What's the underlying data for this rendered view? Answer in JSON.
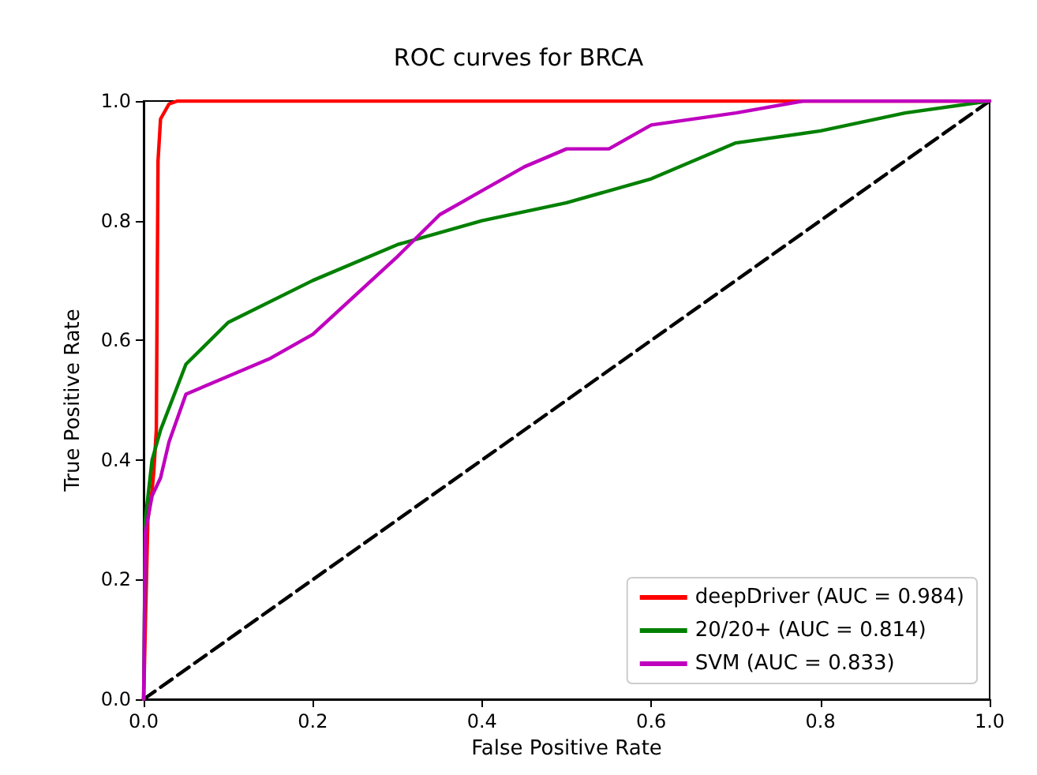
{
  "chart_data": {
    "type": "line",
    "title": "ROC curves for BRCA",
    "xlabel": "False Positive Rate",
    "ylabel": "True Positive Rate",
    "xlim": [
      0,
      1
    ],
    "ylim": [
      0,
      1
    ],
    "xticks": [
      {
        "value": 0,
        "label": "0.0"
      },
      0.2,
      0.4,
      0.6,
      0.8,
      {
        "value": 1,
        "label": "1.0"
      }
    ],
    "yticks": [
      {
        "value": 0,
        "label": "0.0"
      },
      0.2,
      0.4,
      0.6,
      0.8,
      {
        "value": 1,
        "label": "1.0"
      }
    ],
    "grid": false,
    "legend": "bottom right",
    "marker": "none",
    "series": [
      {
        "name": "deepDriver (AUC = 0.984)",
        "color": "#ff0000",
        "x": [
          0,
          0.005,
          0.01,
          0.012,
          0.015,
          0.017,
          0.02,
          0.03,
          0.04,
          1
        ],
        "values": [
          0,
          0.3,
          0.35,
          0.38,
          0.45,
          0.9,
          0.97,
          0.995,
          1,
          1
        ]
      },
      {
        "name": "20/20+ (AUC = 0.814)",
        "color": "#008000",
        "x": [
          0,
          0.002,
          0.01,
          0.02,
          0.05,
          0.1,
          0.2,
          0.3,
          0.4,
          0.5,
          0.6,
          0.7,
          0.8,
          0.9,
          1
        ],
        "values": [
          0,
          0.3,
          0.4,
          0.45,
          0.56,
          0.63,
          0.7,
          0.76,
          0.8,
          0.83,
          0.87,
          0.93,
          0.95,
          0.98,
          1
        ]
      },
      {
        "name": "SVM (AUC = 0.833)",
        "color": "#bf00bf",
        "x": [
          0,
          0.002,
          0.01,
          0.02,
          0.03,
          0.05,
          0.1,
          0.15,
          0.2,
          0.25,
          0.3,
          0.35,
          0.4,
          0.45,
          0.5,
          0.55,
          0.6,
          0.7,
          0.78,
          1
        ],
        "values": [
          0,
          0.28,
          0.34,
          0.37,
          0.43,
          0.51,
          0.54,
          0.57,
          0.61,
          0.675,
          0.74,
          0.81,
          0.85,
          0.89,
          0.92,
          0.92,
          0.96,
          0.98,
          1,
          1
        ]
      },
      {
        "color": "#000000",
        "line_style": "dashed",
        "x": [
          0,
          1
        ],
        "values": [
          0,
          1
        ]
      }
    ]
  }
}
